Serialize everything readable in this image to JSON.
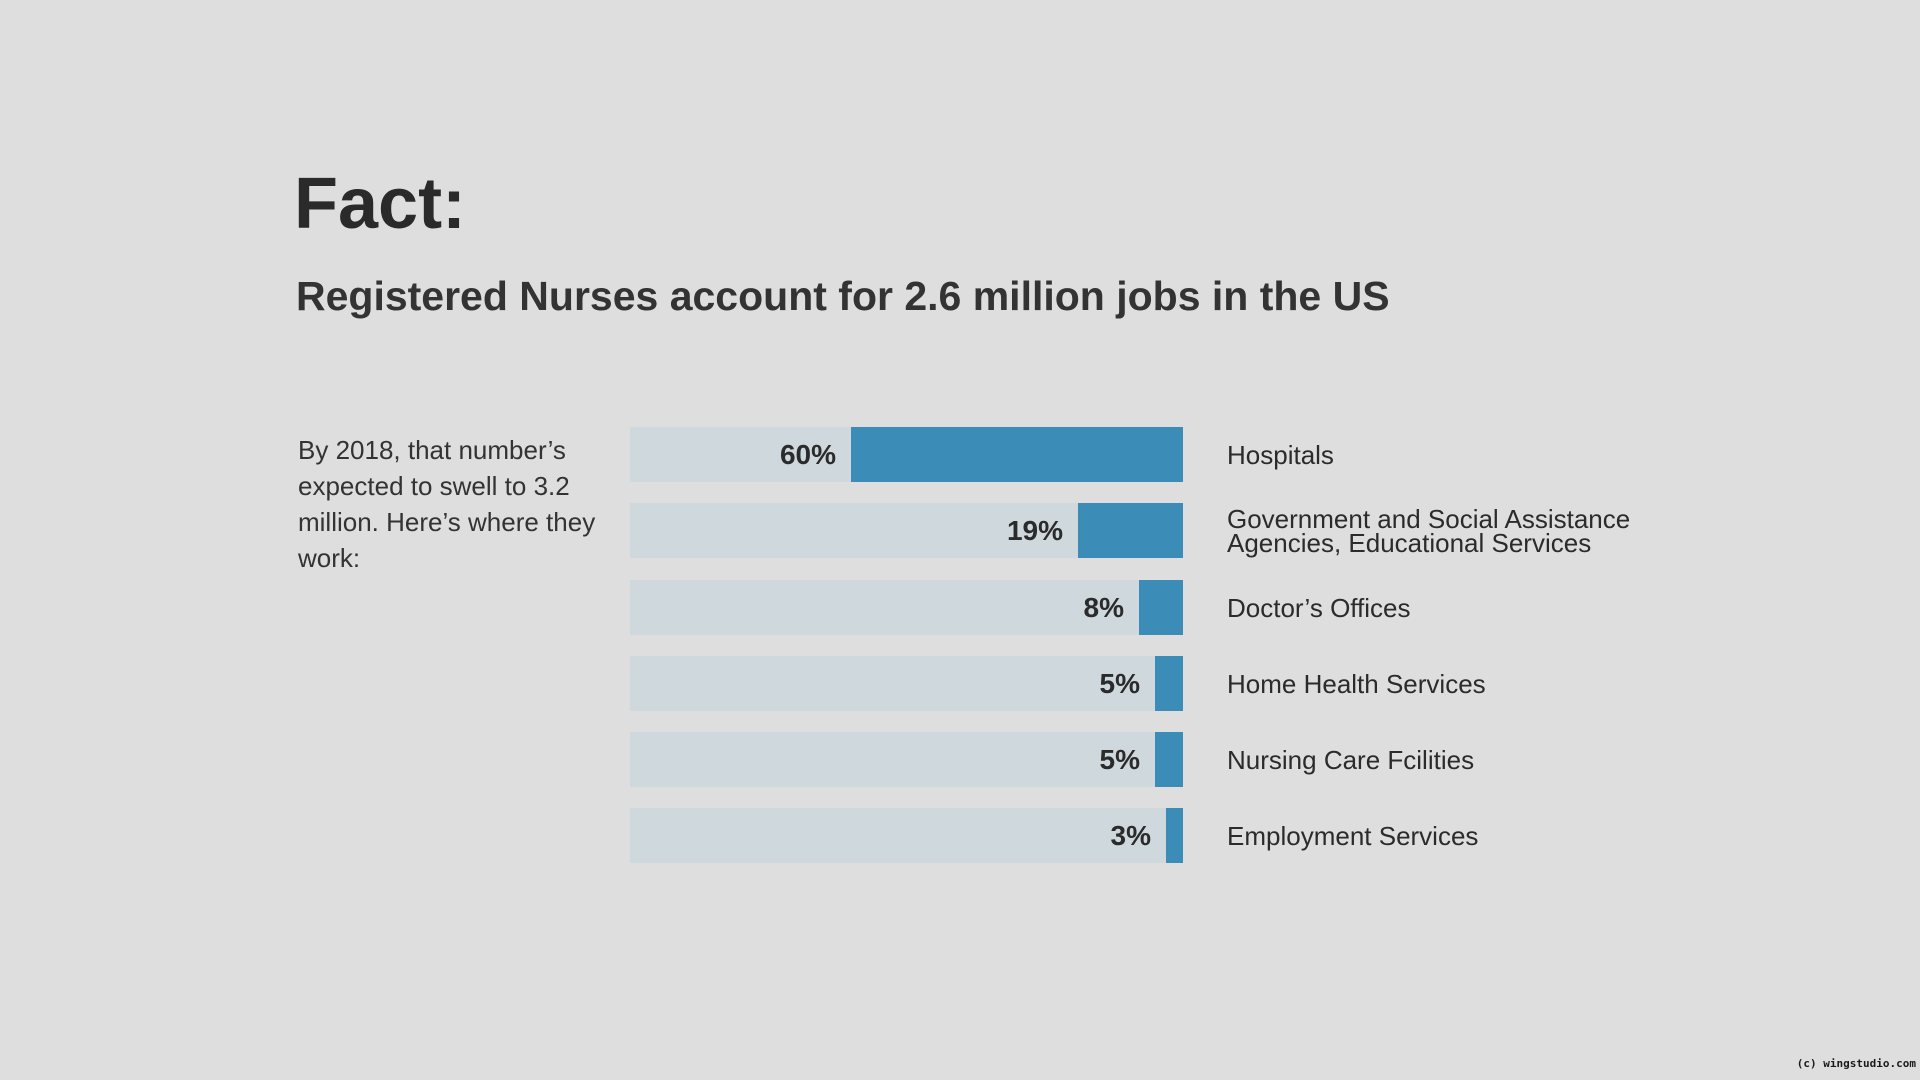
{
  "heading": {
    "title": "Fact:",
    "subtitle": "Registered Nurses account for 2.6 million jobs in the US"
  },
  "intro": "By 2018, that number’s expected to swell to 3.2 million. Here’s where they work:",
  "credit": "(c) wingstudio.com",
  "colors": {
    "fill": "#3b8db8",
    "track": "#cfd8dd",
    "background": "#dedede"
  },
  "chart_data": {
    "type": "bar",
    "orientation": "horizontal",
    "categories": [
      "Hospitals",
      "Government and Social Assistance Agencies, Educational Services",
      "Doctor’s Offices",
      "Home Health Services",
      "Nursing Care Fcilities",
      "Employment Services"
    ],
    "values": [
      60,
      19,
      8,
      5,
      5,
      3
    ],
    "value_labels": [
      "60%",
      "19%",
      "8%",
      "5%",
      "5%",
      "3%"
    ],
    "xlim": [
      0,
      100
    ],
    "grid": false,
    "legend": "none"
  }
}
